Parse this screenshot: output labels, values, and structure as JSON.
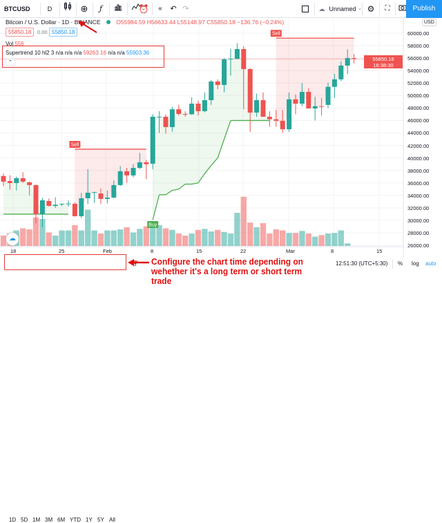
{
  "toolbar": {
    "symbol": "BTCUSD",
    "interval": "D",
    "layout_name": "Unnamed",
    "publish": "Publish",
    "icons": [
      "candles-icon",
      "add-compare-icon",
      "fx-indicators-icon",
      "templates-icon",
      "alert-icon",
      "replay-icon",
      "undo-icon",
      "redo-icon",
      "select-square-icon",
      "cloud-icon",
      "gear-icon",
      "fullscreen-icon",
      "camera-icon"
    ]
  },
  "legend": {
    "title": "Bitcoin / U.S. Dollar",
    "interval": "1D",
    "exchange": "BINANCE",
    "o": "O55984.59",
    "h": "H56633.44",
    "l": "L55148.97",
    "c": "C55850.18",
    "change": "−136.76 (−0.24%)",
    "bid": "55850.18",
    "spread": "0.00",
    "ask": "55850.18"
  },
  "volume": {
    "label": "Vol",
    "value": "556"
  },
  "supertrend": {
    "name": "Supertrend",
    "params": "10 hl2 3",
    "na1": "n/a n/a n/a",
    "up": "59263.16",
    "na2": "n/a n/a",
    "down": "55903.36"
  },
  "price_axis": {
    "currency": "USD",
    "labels": [
      "60000.00",
      "58000.00",
      "56000.00",
      "54000.00",
      "52000.00",
      "50000.00",
      "48000.00",
      "46000.00",
      "44000.00",
      "42000.00",
      "40000.00",
      "38000.00",
      "36000.00",
      "34000.00",
      "32000.00",
      "30000.00",
      "28000.00",
      "26000.00"
    ],
    "last_price": "55850.18",
    "countdown": "16:38:30"
  },
  "time_axis": {
    "labels": [
      "18",
      "25",
      "Feb",
      "8",
      "15",
      "22",
      "Mar",
      "8",
      "15"
    ]
  },
  "signals": {
    "sell": "Sell",
    "buy": "Buy"
  },
  "bottom": {
    "ranges": [
      "1D",
      "5D",
      "1M",
      "3M",
      "6M",
      "YTD",
      "1Y",
      "5Y",
      "All"
    ],
    "clock": "12:51:30 (UTC+5:30)",
    "percent": "%",
    "log": "log",
    "auto": "auto"
  },
  "annotation": "Configure the chart time depending on wehether it's a long term or short term trade",
  "colors": {
    "up": "#26a69a",
    "down": "#ef5350",
    "accent": "#2196f3",
    "annotation": "#e01010"
  },
  "chart_data": {
    "type": "candlestick",
    "candles": [
      [
        37100,
        37500,
        35500,
        36200
      ],
      [
        36300,
        37200,
        34900,
        35980
      ],
      [
        35980,
        37000,
        34800,
        36750
      ],
      [
        36750,
        37700,
        36000,
        36200
      ],
      [
        36100,
        36200,
        34000,
        35650
      ],
      [
        35650,
        35700,
        29500,
        30990
      ],
      [
        30990,
        33600,
        28900,
        33210
      ],
      [
        33100,
        33500,
        32200,
        32320
      ],
      [
        32300,
        33700,
        32000,
        32500
      ],
      [
        32600,
        32700,
        32300,
        32650
      ],
      [
        32650,
        33200,
        32200,
        32700
      ],
      [
        32650,
        32900,
        30600,
        30660
      ],
      [
        30660,
        34400,
        30400,
        33540
      ],
      [
        33540,
        38200,
        32600,
        34430
      ],
      [
        34430,
        34600,
        32800,
        34500
      ],
      [
        34300,
        35100,
        32600,
        33430
      ],
      [
        33430,
        34800,
        32700,
        33650
      ],
      [
        33650,
        36400,
        33500,
        35650
      ],
      [
        35650,
        38700,
        35500,
        37860
      ],
      [
        37860,
        38400,
        36000,
        37200
      ],
      [
        37200,
        39000,
        36900,
        38400
      ],
      [
        38400,
        40800,
        38200,
        39300
      ],
      [
        39300,
        39700,
        36600,
        39000
      ],
      [
        39077,
        47000,
        38200,
        46600
      ],
      [
        46600,
        47500,
        44000,
        46600
      ],
      [
        46600,
        47000,
        43900,
        44945
      ],
      [
        44945,
        48200,
        44200,
        47800
      ],
      [
        47800,
        48500,
        46800,
        47050
      ],
      [
        47050,
        47500,
        46600,
        47000
      ],
      [
        47000,
        49700,
        46900,
        48700
      ],
      [
        48700,
        49200,
        46800,
        47500
      ],
      [
        47500,
        50500,
        47300,
        49262
      ],
      [
        49262,
        52500,
        48500,
        52250
      ],
      [
        52250,
        52600,
        51000,
        51700
      ],
      [
        51700,
        56000,
        50500,
        55800
      ],
      [
        55800,
        57500,
        53200,
        55900
      ],
      [
        55900,
        58400,
        55800,
        57454
      ],
      [
        57454,
        57900,
        47800,
        54244
      ],
      [
        54244,
        54400,
        44200,
        47270
      ],
      [
        47270,
        50300,
        46600,
        49262
      ],
      [
        49262,
        50500,
        46800,
        46600
      ],
      [
        46600,
        47500,
        45000,
        46200
      ],
      [
        46200,
        47700,
        45000,
        45950
      ],
      [
        45950,
        47700,
        44000,
        44600
      ],
      [
        44600,
        50500,
        44200,
        49400
      ],
      [
        49400,
        50200,
        47000,
        48700
      ],
      [
        48700,
        52000,
        48300,
        50590
      ],
      [
        50590,
        51200,
        48000,
        47930
      ],
      [
        47930,
        49800,
        46000,
        48300
      ],
      [
        48300,
        49600,
        46800,
        48250
      ],
      [
        48500,
        52100,
        48000,
        51400
      ],
      [
        51400,
        53500,
        49600,
        52600
      ],
      [
        52600,
        55500,
        52300,
        54800
      ],
      [
        54800,
        57400,
        53400,
        56000
      ],
      [
        55985,
        56633,
        55149,
        55850
      ]
    ],
    "volume": [
      20,
      24,
      30,
      34,
      32,
      55,
      52,
      26,
      20,
      30,
      30,
      40,
      30,
      70,
      30,
      24,
      30,
      30,
      32,
      36,
      26,
      33,
      38,
      46,
      40,
      34,
      31,
      24,
      20,
      24,
      31,
      33,
      28,
      31,
      27,
      24,
      64,
      95,
      45,
      36,
      44,
      24,
      32,
      30,
      25,
      25,
      29,
      24,
      18,
      21,
      24,
      25,
      30,
      5
    ],
    "supertrend": [
      [
        0,
        30990,
        "up"
      ],
      [
        10,
        30990,
        "up"
      ],
      [
        11,
        41400,
        "down"
      ],
      [
        22,
        41400,
        "down"
      ],
      [
        23,
        30100,
        "up"
      ],
      [
        24,
        34100,
        "up"
      ],
      [
        25,
        34100,
        "up"
      ],
      [
        26,
        34800,
        "up"
      ],
      [
        27,
        35000,
        "up"
      ],
      [
        28,
        35800,
        "up"
      ],
      [
        29,
        35800,
        "up"
      ],
      [
        30,
        36000,
        "up"
      ],
      [
        31,
        37500,
        "up"
      ],
      [
        32,
        38800,
        "up"
      ],
      [
        33,
        40000,
        "up"
      ],
      [
        34,
        43000,
        "up"
      ],
      [
        35,
        46000,
        "up"
      ],
      [
        41,
        46000,
        "up"
      ],
      [
        42,
        59200,
        "down"
      ],
      [
        54,
        59200,
        "down"
      ]
    ],
    "signals": [
      {
        "index": 11,
        "type": "sell"
      },
      {
        "index": 23,
        "type": "buy"
      },
      {
        "index": 42,
        "type": "sell"
      }
    ],
    "ylim": [
      26000,
      61000
    ],
    "x_ticks": [
      "18",
      "25",
      "Feb",
      "8",
      "15",
      "22",
      "Mar",
      "8",
      "15"
    ]
  }
}
